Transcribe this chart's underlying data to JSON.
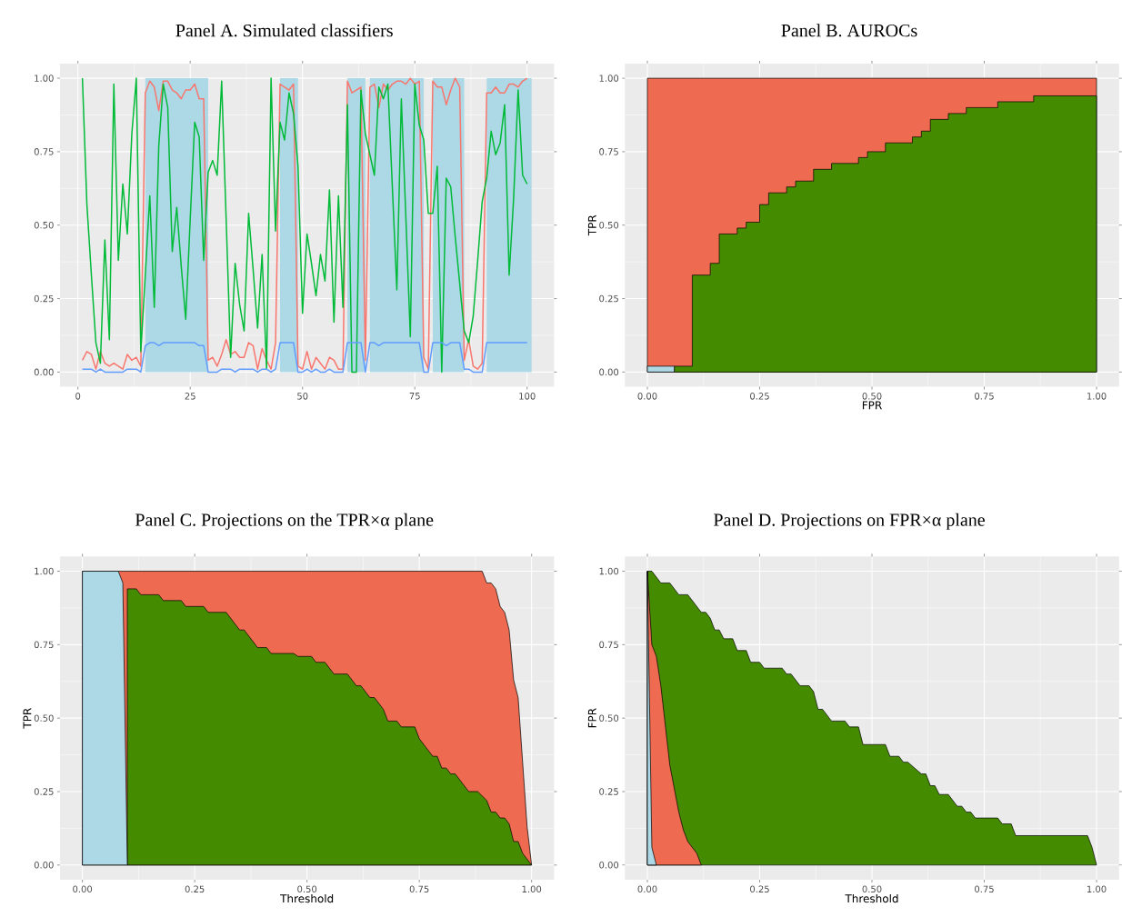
{
  "chart_data": [
    {
      "type": "line",
      "title": "Panel A. Simulated classifiers",
      "grid": true,
      "x": [
        1,
        2,
        3,
        4,
        5,
        6,
        7,
        8,
        9,
        10,
        11,
        12,
        13,
        14,
        15,
        16,
        17,
        18,
        19,
        20,
        21,
        22,
        23,
        24,
        25,
        26,
        27,
        28,
        29,
        30,
        31,
        32,
        33,
        34,
        35,
        36,
        37,
        38,
        39,
        40,
        41,
        42,
        43,
        44,
        45,
        46,
        47,
        48,
        49,
        50,
        51,
        52,
        53,
        54,
        55,
        56,
        57,
        58,
        59,
        60,
        61,
        62,
        63,
        64,
        65,
        66,
        67,
        68,
        69,
        70,
        71,
        72,
        73,
        74,
        75,
        76,
        77,
        78,
        79,
        80,
        81,
        82,
        83,
        84,
        85,
        86,
        87,
        88,
        89,
        90,
        91,
        92,
        93,
        94,
        95,
        96,
        97,
        98,
        99,
        100
      ],
      "bands": [
        {
          "axis": "x",
          "from": 15,
          "to": 29,
          "color": "#add8e6"
        },
        {
          "axis": "x",
          "from": 45,
          "to": 49,
          "color": "#add8e6"
        },
        {
          "axis": "x",
          "from": 60,
          "to": 64,
          "color": "#add8e6"
        },
        {
          "axis": "x",
          "from": 65,
          "to": 77,
          "color": "#add8e6"
        },
        {
          "axis": "x",
          "from": 79,
          "to": 86,
          "color": "#add8e6"
        },
        {
          "axis": "x",
          "from": 91,
          "to": 101,
          "color": "#add8e6"
        }
      ],
      "series": [
        {
          "color": "#f8766d",
          "values": [
            0.04,
            0.07,
            0.06,
            0.01,
            0.07,
            0.03,
            0.02,
            0.03,
            0.02,
            0.01,
            0.06,
            0.04,
            0.05,
            0.02,
            0.95,
            0.99,
            0.97,
            0.89,
            0.99,
            0.99,
            0.96,
            0.95,
            0.93,
            0.96,
            0.96,
            0.98,
            0.93,
            0.93,
            0.04,
            0.05,
            0.02,
            0.06,
            0.11,
            0.06,
            0.07,
            0.05,
            0.05,
            0.1,
            0.09,
            0.01,
            0.08,
            0.04,
            0.01,
            0.1,
            0.98,
            0.97,
            0.96,
            0.98,
            0.02,
            0.01,
            0.07,
            0.01,
            0.05,
            0.03,
            0.01,
            0.05,
            0.04,
            0.01,
            0.01,
            0.99,
            0.95,
            0.96,
            0.97,
            0.04,
            0.97,
            0.98,
            0.9,
            0.98,
            0.96,
            0.98,
            0.99,
            0.99,
            0.98,
            1.0,
            0.98,
            0.99,
            0.05,
            0.01,
            0.99,
            0.97,
            0.97,
            0.91,
            0.96,
            1.0,
            0.97,
            0.04,
            0.11,
            0.02,
            0.01,
            0.03,
            0.95,
            0.95,
            0.97,
            0.95,
            0.95,
            0.98,
            0.98,
            0.97,
            0.99,
            1.0
          ]
        },
        {
          "color": "#00ba38",
          "values": [
            1.0,
            0.57,
            0.33,
            0.1,
            0.03,
            0.45,
            0.11,
            0.98,
            0.38,
            0.64,
            0.47,
            0.81,
            1.0,
            0.07,
            0.33,
            0.6,
            0.22,
            0.77,
            0.98,
            0.9,
            0.41,
            0.56,
            0.36,
            0.18,
            0.52,
            0.85,
            0.8,
            0.38,
            0.68,
            0.72,
            0.67,
            0.99,
            0.52,
            0.05,
            0.37,
            0.23,
            0.14,
            0.54,
            0.35,
            0.15,
            0.4,
            0.01,
            1.0,
            0.48,
            0.85,
            0.79,
            0.95,
            0.88,
            0.7,
            0.2,
            0.47,
            0.37,
            0.26,
            0.4,
            0.31,
            0.62,
            0.17,
            0.6,
            0.22,
            0.91,
            0.0,
            0.0,
            0.96,
            0.81,
            0.74,
            0.67,
            0.97,
            0.93,
            0.98,
            0.63,
            0.28,
            0.93,
            0.53,
            0.12,
            0.98,
            0.84,
            0.79,
            0.54,
            0.54,
            0.7,
            0.0,
            0.66,
            0.63,
            0.46,
            0.3,
            0.14,
            0.1,
            0.19,
            0.38,
            0.58,
            0.66,
            0.82,
            0.74,
            0.78,
            0.91,
            0.33,
            0.59,
            0.96,
            0.67,
            0.64
          ]
        },
        {
          "color": "#619cff",
          "values": [
            0.01,
            0.01,
            0.01,
            0.0,
            0.01,
            0.0,
            0.0,
            0.0,
            0.0,
            0.0,
            0.01,
            0.01,
            0.01,
            0.0,
            0.09,
            0.1,
            0.1,
            0.09,
            0.1,
            0.1,
            0.1,
            0.1,
            0.1,
            0.1,
            0.1,
            0.1,
            0.09,
            0.09,
            0.0,
            0.0,
            0.0,
            0.01,
            0.01,
            0.01,
            0.0,
            0.01,
            0.01,
            0.01,
            0.01,
            0.0,
            0.01,
            0.01,
            0.0,
            0.01,
            0.1,
            0.1,
            0.1,
            0.1,
            0.0,
            0.0,
            0.01,
            0.0,
            0.01,
            0.0,
            0.0,
            0.01,
            0.0,
            0.0,
            0.0,
            0.1,
            0.1,
            0.1,
            0.1,
            0.0,
            0.1,
            0.1,
            0.09,
            0.1,
            0.1,
            0.1,
            0.1,
            0.1,
            0.1,
            0.1,
            0.1,
            0.1,
            0.0,
            0.0,
            0.1,
            0.1,
            0.1,
            0.09,
            0.1,
            0.1,
            0.1,
            0.01,
            0.01,
            0.0,
            0.0,
            0.0,
            0.1,
            0.1,
            0.1,
            0.1,
            0.1,
            0.1,
            0.1,
            0.1,
            0.1,
            0.1
          ]
        }
      ],
      "xlim": [
        -4,
        106
      ],
      "ylim": [
        -0.05,
        1.05
      ],
      "xticks": [
        0,
        25,
        50,
        75,
        100
      ],
      "yticks": [
        {
          "value": 0,
          "label": "0.00"
        },
        {
          "value": 0.25,
          "label": "0.25"
        },
        {
          "value": 0.5,
          "label": "0.50"
        },
        {
          "value": 0.75,
          "label": "0.75"
        },
        {
          "value": 1,
          "label": "1.00"
        }
      ]
    },
    {
      "type": "area",
      "title": "Panel B. AUROCs",
      "xlabel": "FPR",
      "ylabel": "TPR",
      "grid": true,
      "series": [
        {
          "color": "#ee6a50",
          "x": [
            0,
            1
          ],
          "values": [
            1,
            1
          ]
        },
        {
          "color": "#458b00",
          "x": [
            0.06,
            0.06,
            0.1,
            0.1,
            0.14,
            0.14,
            0.16,
            0.16,
            0.2,
            0.2,
            0.22,
            0.22,
            0.25,
            0.25,
            0.27,
            0.27,
            0.31,
            0.31,
            0.33,
            0.33,
            0.37,
            0.37,
            0.41,
            0.41,
            0.47,
            0.47,
            0.49,
            0.49,
            0.53,
            0.53,
            0.59,
            0.59,
            0.61,
            0.61,
            0.63,
            0.63,
            0.67,
            0.67,
            0.71,
            0.71,
            0.78,
            0.78,
            0.86,
            0.86,
            1
          ],
          "values": [
            0,
            0.02,
            0.02,
            0.33,
            0.33,
            0.37,
            0.37,
            0.47,
            0.47,
            0.49,
            0.49,
            0.51,
            0.51,
            0.57,
            0.57,
            0.61,
            0.61,
            0.63,
            0.63,
            0.65,
            0.65,
            0.69,
            0.69,
            0.71,
            0.71,
            0.73,
            0.73,
            0.75,
            0.75,
            0.78,
            0.78,
            0.8,
            0.8,
            0.82,
            0.82,
            0.86,
            0.86,
            0.88,
            0.88,
            0.9,
            0.9,
            0.92,
            0.92,
            0.94,
            0.94
          ]
        },
        {
          "color": "#add8e6",
          "x": [
            0,
            0.06
          ],
          "values": [
            0.02,
            0.02
          ]
        }
      ],
      "xlim": [
        -0.05,
        1.05
      ],
      "ylim": [
        -0.05,
        1.05
      ],
      "xticks": [
        {
          "value": 0,
          "label": "0.00"
        },
        {
          "value": 0.25,
          "label": "0.25"
        },
        {
          "value": 0.5,
          "label": "0.50"
        },
        {
          "value": 0.75,
          "label": "0.75"
        },
        {
          "value": 1,
          "label": "1.00"
        }
      ],
      "yticks": [
        {
          "value": 0,
          "label": "0.00"
        },
        {
          "value": 0.25,
          "label": "0.25"
        },
        {
          "value": 0.5,
          "label": "0.50"
        },
        {
          "value": 0.75,
          "label": "0.75"
        },
        {
          "value": 1,
          "label": "1.00"
        }
      ]
    },
    {
      "type": "area",
      "title": "Panel C. Projections on the TPR×α plane",
      "xlabel": "Threshold",
      "ylabel": "TPR",
      "grid": true,
      "series": [
        {
          "color": "#ee6a50",
          "x": [
            0,
            0.89,
            0.9,
            0.91,
            0.92,
            0.93,
            0.94,
            0.95,
            0.96,
            0.97,
            0.99,
            1
          ],
          "values": [
            1,
            1,
            0.96,
            0.96,
            0.94,
            0.88,
            0.86,
            0.8,
            0.63,
            0.57,
            0.13,
            0
          ]
        },
        {
          "color": "#458b00",
          "x": [
            0.1,
            0.12,
            0.13,
            0.17,
            0.18,
            0.22,
            0.23,
            0.27,
            0.28,
            0.32,
            0.35,
            0.36,
            0.39,
            0.41,
            0.42,
            0.47,
            0.48,
            0.51,
            0.52,
            0.54,
            0.56,
            0.59,
            0.61,
            0.62,
            0.64,
            0.65,
            0.67,
            0.68,
            0.7,
            0.71,
            0.74,
            0.75,
            0.78,
            0.79,
            0.8,
            0.81,
            0.82,
            0.83,
            0.86,
            0.88,
            0.9,
            0.91,
            0.92,
            0.93,
            0.94,
            0.95,
            0.96,
            0.97,
            0.98,
            1
          ],
          "values": [
            0.94,
            0.94,
            0.92,
            0.92,
            0.9,
            0.9,
            0.88,
            0.88,
            0.86,
            0.86,
            0.8,
            0.8,
            0.74,
            0.74,
            0.72,
            0.72,
            0.71,
            0.71,
            0.69,
            0.69,
            0.65,
            0.65,
            0.61,
            0.61,
            0.57,
            0.57,
            0.53,
            0.49,
            0.49,
            0.47,
            0.47,
            0.43,
            0.37,
            0.37,
            0.33,
            0.33,
            0.31,
            0.31,
            0.25,
            0.25,
            0.22,
            0.18,
            0.18,
            0.16,
            0.16,
            0.14,
            0.08,
            0.08,
            0.04,
            0
          ]
        },
        {
          "color": "#add8e6",
          "x": [
            0,
            0.08,
            0.09,
            0.1
          ],
          "values": [
            1,
            1,
            0.96,
            0
          ]
        }
      ],
      "xlim": [
        -0.05,
        1.05
      ],
      "ylim": [
        -0.05,
        1.05
      ],
      "xticks": [
        {
          "value": 0,
          "label": "0.00"
        },
        {
          "value": 0.25,
          "label": "0.25"
        },
        {
          "value": 0.5,
          "label": "0.50"
        },
        {
          "value": 0.75,
          "label": "0.75"
        },
        {
          "value": 1,
          "label": "1.00"
        }
      ],
      "yticks": [
        {
          "value": 0,
          "label": "0.00"
        },
        {
          "value": 0.25,
          "label": "0.25"
        },
        {
          "value": 0.5,
          "label": "0.50"
        },
        {
          "value": 0.75,
          "label": "0.75"
        },
        {
          "value": 1,
          "label": "1.00"
        }
      ]
    },
    {
      "type": "area",
      "title": "Panel D. Projections on FPR×α plane",
      "xlabel": "Threshold",
      "ylabel": "FPR",
      "grid": true,
      "series": [
        {
          "color": "#458b00",
          "x": [
            0,
            0.01,
            0.03,
            0.05,
            0.07,
            0.09,
            0.12,
            0.13,
            0.14,
            0.15,
            0.16,
            0.17,
            0.19,
            0.2,
            0.22,
            0.23,
            0.25,
            0.26,
            0.3,
            0.31,
            0.32,
            0.34,
            0.36,
            0.37,
            0.38,
            0.39,
            0.41,
            0.44,
            0.45,
            0.47,
            0.48,
            0.53,
            0.54,
            0.56,
            0.57,
            0.58,
            0.61,
            0.62,
            0.63,
            0.64,
            0.65,
            0.67,
            0.69,
            0.7,
            0.71,
            0.72,
            0.73,
            0.78,
            0.79,
            0.81,
            0.82,
            0.98,
            0.99,
            1
          ],
          "values": [
            1,
            1,
            0.96,
            0.96,
            0.92,
            0.92,
            0.86,
            0.86,
            0.84,
            0.8,
            0.8,
            0.77,
            0.77,
            0.73,
            0.73,
            0.69,
            0.69,
            0.67,
            0.67,
            0.65,
            0.65,
            0.61,
            0.61,
            0.59,
            0.53,
            0.53,
            0.49,
            0.49,
            0.47,
            0.47,
            0.41,
            0.41,
            0.37,
            0.37,
            0.35,
            0.35,
            0.31,
            0.31,
            0.27,
            0.27,
            0.24,
            0.24,
            0.2,
            0.2,
            0.18,
            0.18,
            0.16,
            0.16,
            0.14,
            0.14,
            0.1,
            0.1,
            0.06,
            0
          ]
        },
        {
          "color": "#ee6a50",
          "x": [
            0,
            0.01,
            0.02,
            0.03,
            0.05,
            0.07,
            0.08,
            0.09,
            0.11,
            0.12
          ],
          "values": [
            1,
            0.75,
            0.71,
            0.61,
            0.34,
            0.18,
            0.12,
            0.08,
            0.04,
            0
          ]
        },
        {
          "color": "#add8e6",
          "x": [
            0,
            0.01,
            0.02
          ],
          "values": [
            1,
            0.06,
            0
          ]
        }
      ],
      "xlim": [
        -0.05,
        1.05
      ],
      "ylim": [
        -0.05,
        1.05
      ],
      "xticks": [
        {
          "value": 0,
          "label": "0.00"
        },
        {
          "value": 0.25,
          "label": "0.25"
        },
        {
          "value": 0.5,
          "label": "0.50"
        },
        {
          "value": 0.75,
          "label": "0.75"
        },
        {
          "value": 1,
          "label": "1.00"
        }
      ],
      "yticks": [
        {
          "value": 0,
          "label": "0.00"
        },
        {
          "value": 0.25,
          "label": "0.25"
        },
        {
          "value": 0.5,
          "label": "0.50"
        },
        {
          "value": 0.75,
          "label": "0.75"
        },
        {
          "value": 1,
          "label": "1.00"
        }
      ]
    }
  ]
}
